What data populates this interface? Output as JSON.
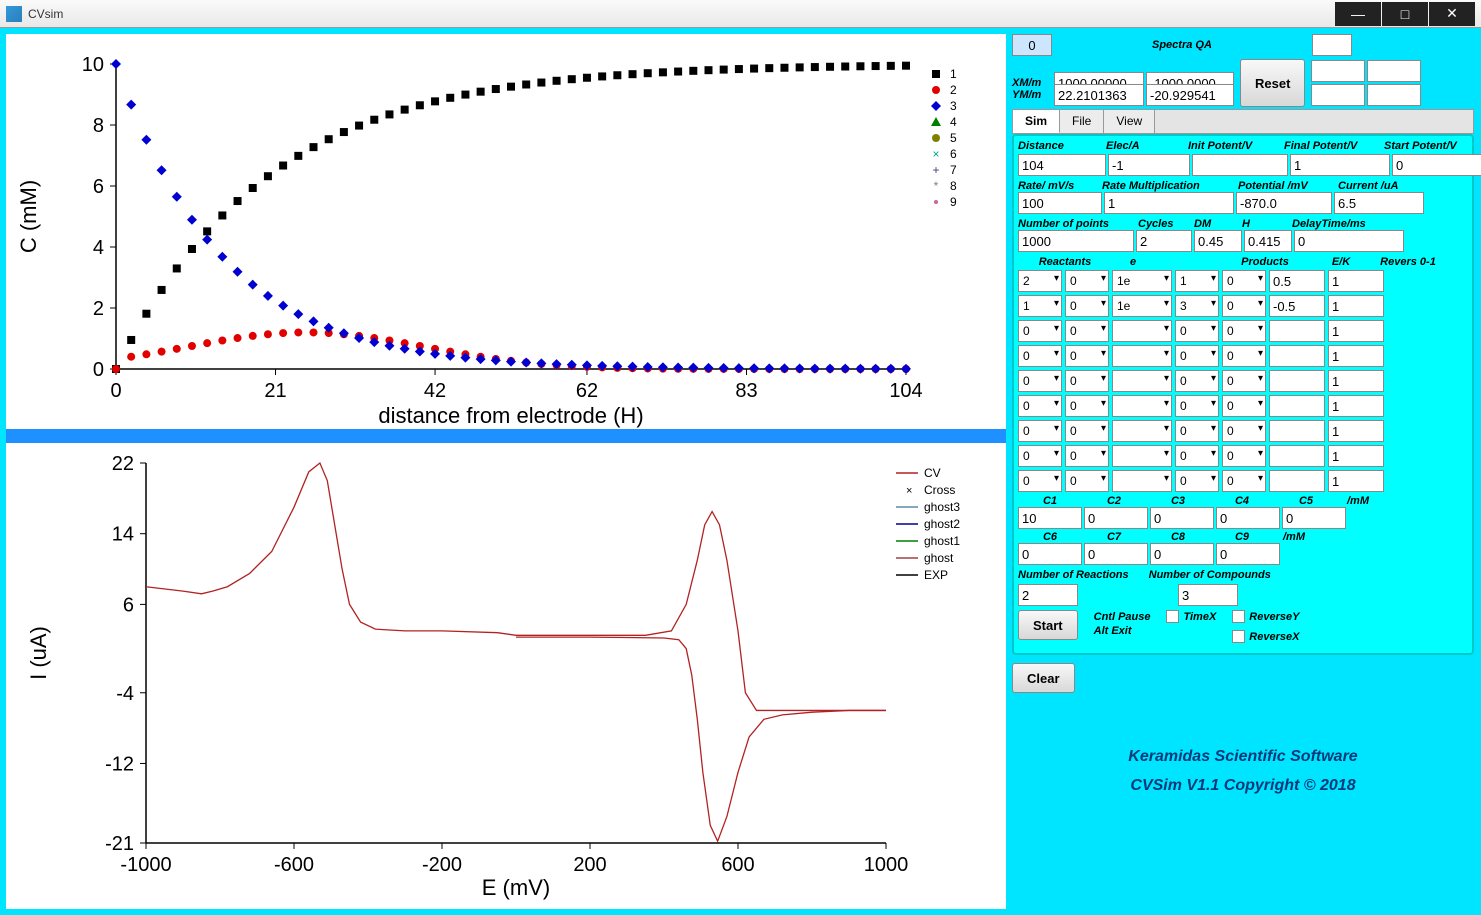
{
  "window": {
    "title": "CVsim"
  },
  "top": {
    "left_input": "0",
    "spectra_qa_label": "Spectra QA",
    "xm_label": "XM/m",
    "xm_min": "1000.00000",
    "xm_max": "-1000.0000",
    "ym_label": "YM/m",
    "ym_min": "22.2101363",
    "ym_max": "-20.929541",
    "reset_label": "Reset"
  },
  "tabs": {
    "sim": "Sim",
    "file": "File",
    "view": "View"
  },
  "chart1": {
    "title": "",
    "xlabel": "distance from electrode (H)",
    "ylabel": "C (mM)",
    "xlim": [
      0,
      104
    ],
    "xticks": [
      0,
      21,
      42,
      62,
      83,
      104
    ],
    "ylim": [
      0,
      10
    ],
    "yticks": [
      0,
      2,
      4,
      6,
      8,
      10
    ],
    "legend": [
      {
        "label": "1",
        "marker": "square",
        "color": "#000000"
      },
      {
        "label": "2",
        "marker": "circle",
        "color": "#e00000"
      },
      {
        "label": "3",
        "marker": "diamond",
        "color": "#0000d0"
      },
      {
        "label": "4",
        "marker": "triangle",
        "color": "#008000"
      },
      {
        "label": "5",
        "marker": "circle",
        "color": "#808000"
      },
      {
        "label": "6",
        "marker": "cross",
        "color": "#00a090"
      },
      {
        "label": "7",
        "marker": "plus",
        "color": "#404080"
      },
      {
        "label": "8",
        "marker": "star",
        "color": "#808080"
      },
      {
        "label": "9",
        "marker": "dot",
        "color": "#d060a0"
      }
    ],
    "series1_color": "#000000",
    "series2_color": "#e00000",
    "series3_color": "#0000d0",
    "bg": "#ffffff"
  },
  "chart2": {
    "xlabel": "E (mV)",
    "ylabel": "I (uA)",
    "xlim": [
      -1000,
      1000
    ],
    "xticks": [
      -1000,
      -600,
      -200,
      200,
      600,
      1000
    ],
    "ylim": [
      -21,
      22
    ],
    "yticks": [
      -21,
      -12,
      -4,
      6,
      14,
      22
    ],
    "legend": [
      {
        "label": "CV",
        "color": "#b22222",
        "style": "line"
      },
      {
        "label": "Cross",
        "color": "#000000",
        "style": "cross"
      },
      {
        "label": "ghost3",
        "color": "#5b8aa6",
        "style": "line"
      },
      {
        "label": "ghost2",
        "color": "#00008b",
        "style": "line"
      },
      {
        "label": "ghost1",
        "color": "#008000",
        "style": "line"
      },
      {
        "label": "ghost",
        "color": "#a04040",
        "style": "line"
      },
      {
        "label": "EXP",
        "color": "#000000",
        "style": "line"
      }
    ],
    "cv_color": "#b22222",
    "bg": "#ffffff"
  },
  "params": {
    "h1": {
      "distance": "Distance",
      "eleca": "Elec/A",
      "initp": "Init Potent/V",
      "finalp": "Final Potent/V",
      "startp": "Start Potent/V"
    },
    "v1": {
      "distance": "104",
      "eleca": "-1",
      "initp": "",
      "finalp": "1",
      "startp": "0"
    },
    "h2": {
      "rate": "Rate/ mV/s",
      "ratem": "Rate Multiplication",
      "pot": "Potential /mV",
      "cur": "Current /uA"
    },
    "v2": {
      "rate": "100",
      "ratem": "1",
      "pot": "-870.0",
      "cur": "6.5"
    },
    "h3": {
      "np": "Number of points",
      "cycles": "Cycles",
      "dm": "DM",
      "h": "H",
      "delay": "DelayTime/ms"
    },
    "v3": {
      "np": "1000",
      "cycles": "2",
      "dm": "0.45",
      "h": "0.415",
      "delay": "0"
    }
  },
  "react_hdr": {
    "reactants": "Reactants",
    "e": "e",
    "products": "Products",
    "ek": "E/K",
    "rev": "Revers 0-1"
  },
  "reactions": [
    {
      "r1": "2",
      "r2": "0",
      "e": "1e",
      "p1": "1",
      "p2": "0",
      "ek": "0.5",
      "rev": "1"
    },
    {
      "r1": "1",
      "r2": "0",
      "e": "1e",
      "p1": "3",
      "p2": "0",
      "ek": "-0.5",
      "rev": "1"
    },
    {
      "r1": "0",
      "r2": "0",
      "e": "",
      "p1": "0",
      "p2": "0",
      "ek": "",
      "rev": "1"
    },
    {
      "r1": "0",
      "r2": "0",
      "e": "",
      "p1": "0",
      "p2": "0",
      "ek": "",
      "rev": "1"
    },
    {
      "r1": "0",
      "r2": "0",
      "e": "",
      "p1": "0",
      "p2": "0",
      "ek": "",
      "rev": "1"
    },
    {
      "r1": "0",
      "r2": "0",
      "e": "",
      "p1": "0",
      "p2": "0",
      "ek": "",
      "rev": "1"
    },
    {
      "r1": "0",
      "r2": "0",
      "e": "",
      "p1": "0",
      "p2": "0",
      "ek": "",
      "rev": "1"
    },
    {
      "r1": "0",
      "r2": "0",
      "e": "",
      "p1": "0",
      "p2": "0",
      "ek": "",
      "rev": "1"
    },
    {
      "r1": "0",
      "r2": "0",
      "e": "",
      "p1": "0",
      "p2": "0",
      "ek": "",
      "rev": "1"
    }
  ],
  "conc": {
    "labels1": [
      "C1",
      "C2",
      "C3",
      "C4",
      "C5",
      "/mM"
    ],
    "vals1": [
      "10",
      "0",
      "0",
      "0",
      "0"
    ],
    "labels2": [
      "C6",
      "C7",
      "C8",
      "C9",
      "/mM"
    ],
    "vals2": [
      "0",
      "0",
      "0",
      "0"
    ]
  },
  "bottom": {
    "nreact_lbl": "Number of Reactions",
    "nreact": "2",
    "ncomp_lbl": "Number of Compounds",
    "ncomp": "3",
    "start": "Start",
    "cntl": "Cntl Pause",
    "alt": "Alt Exit",
    "timex": "TimeX",
    "revy": "ReverseY",
    "revx": "ReverseX",
    "clear": "Clear"
  },
  "credits": {
    "l1": "Keramidas Scientific Software",
    "l2": "CVSim V1.1 Copyright ©  2018"
  }
}
